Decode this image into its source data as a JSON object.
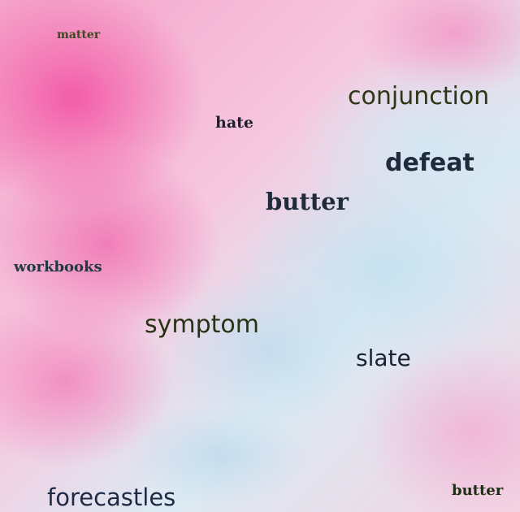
{
  "words": [
    "matter",
    "conjunction",
    "hate",
    "defeat",
    "butter",
    "workbooks",
    "symptom",
    "slate",
    "forecastles",
    "butter"
  ]
}
